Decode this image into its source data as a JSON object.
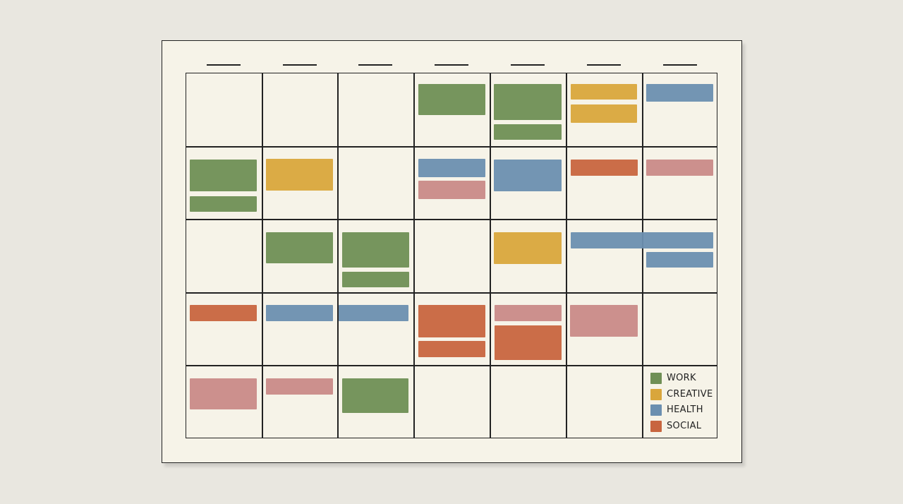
{
  "colors": {
    "work": "#6f8f55",
    "creative": "#d9a63c",
    "health": "#6b8fb0",
    "social": "#c8653f",
    "pink": "#c98a88"
  },
  "legend": [
    {
      "category": "work",
      "label": "WORK"
    },
    {
      "category": "creative",
      "label": "CREATIVE"
    },
    {
      "category": "health",
      "label": "HEALTH"
    },
    {
      "category": "social",
      "label": "SOCIAL"
    }
  ],
  "events": [
    {
      "week": 1,
      "day": 4,
      "category": "work"
    },
    {
      "week": 1,
      "day": 5,
      "category": "work"
    },
    {
      "week": 1,
      "day": 5,
      "category": "work"
    },
    {
      "week": 1,
      "day": 6,
      "category": "creative"
    },
    {
      "week": 1,
      "day": 6,
      "category": "creative"
    },
    {
      "week": 1,
      "day": 7,
      "category": "health"
    },
    {
      "week": 2,
      "day": 1,
      "category": "work"
    },
    {
      "week": 2,
      "day": 1,
      "category": "work"
    },
    {
      "week": 2,
      "day": 2,
      "category": "creative"
    },
    {
      "week": 2,
      "day": 4,
      "category": "health"
    },
    {
      "week": 2,
      "day": 4,
      "category": "pink"
    },
    {
      "week": 2,
      "day": 5,
      "category": "health"
    },
    {
      "week": 2,
      "day": 6,
      "category": "social"
    },
    {
      "week": 2,
      "day": 7,
      "category": "pink"
    },
    {
      "week": 3,
      "day": 2,
      "category": "work"
    },
    {
      "week": 3,
      "day": 3,
      "category": "work"
    },
    {
      "week": 3,
      "day": 3,
      "category": "work"
    },
    {
      "week": 3,
      "day": 5,
      "category": "creative"
    },
    {
      "week": 3,
      "day": 6,
      "category": "health"
    },
    {
      "week": 3,
      "day": 7,
      "category": "health"
    },
    {
      "week": 4,
      "day": 1,
      "category": "social"
    },
    {
      "week": 4,
      "day": 2,
      "category": "health"
    },
    {
      "week": 4,
      "day": 3,
      "category": "health"
    },
    {
      "week": 4,
      "day": 4,
      "category": "social"
    },
    {
      "week": 4,
      "day": 4,
      "category": "social"
    },
    {
      "week": 4,
      "day": 5,
      "category": "pink"
    },
    {
      "week": 4,
      "day": 5,
      "category": "social"
    },
    {
      "week": 4,
      "day": 6,
      "category": "pink"
    },
    {
      "week": 5,
      "day": 1,
      "category": "pink"
    },
    {
      "week": 5,
      "day": 2,
      "category": "pink"
    },
    {
      "week": 5,
      "day": 3,
      "category": "work"
    }
  ]
}
